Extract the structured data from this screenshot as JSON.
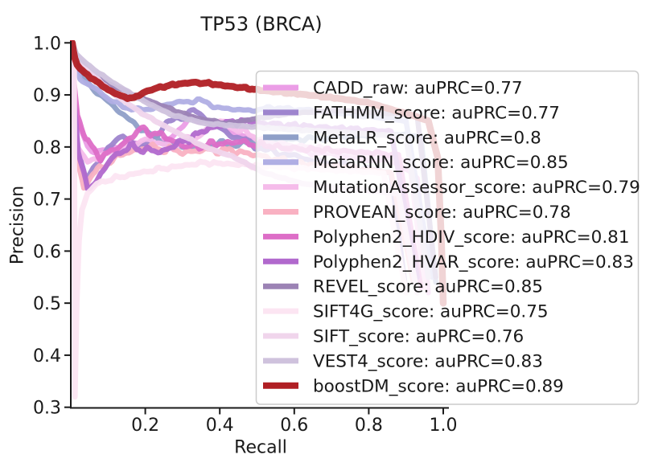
{
  "chart_data": {
    "type": "line",
    "title": "TP53 (BRCA)",
    "xlabel": "Recall",
    "ylabel": "Precision",
    "xlim": [
      0,
      1.015
    ],
    "ylim": [
      0.3,
      1.0
    ],
    "xticks": [
      "0.2",
      "0.4",
      "0.6",
      "0.8",
      "1.0"
    ],
    "xtick_values": [
      0.2,
      0.4,
      0.6,
      0.8,
      1.0
    ],
    "yticks": [
      "0.3",
      "0.4",
      "0.5",
      "0.6",
      "0.7",
      "0.8",
      "0.9",
      "1.0"
    ],
    "ytick_values": [
      0.3,
      0.4,
      0.5,
      0.6,
      0.7,
      0.8,
      0.9,
      1.0
    ],
    "grid": false,
    "legend": {
      "position": "center right",
      "frame_alpha": 0.8,
      "border_color": "#cccccc",
      "text_color": "#1a1a1a"
    },
    "series": [
      {
        "name": "CADD_raw",
        "auprc": 0.77,
        "label": "CADD_raw: auPRC=0.77",
        "color": "#eb9de6",
        "points": [
          [
            0.004,
            1.0
          ],
          [
            0.009,
            0.9
          ],
          [
            0.02,
            0.845
          ],
          [
            0.045,
            0.8
          ],
          [
            0.08,
            0.79
          ],
          [
            0.15,
            0.81
          ],
          [
            0.2,
            0.8
          ],
          [
            0.26,
            0.815
          ],
          [
            0.32,
            0.85
          ],
          [
            0.36,
            0.855
          ],
          [
            0.42,
            0.83
          ],
          [
            0.5,
            0.81
          ],
          [
            0.6,
            0.795
          ],
          [
            0.7,
            0.785
          ],
          [
            0.8,
            0.775
          ],
          [
            0.88,
            0.77
          ],
          [
            0.93,
            0.74
          ],
          [
            0.96,
            0.52
          ]
        ]
      },
      {
        "name": "FATHMM_score",
        "auprc": 0.77,
        "label": "FATHMM_score: auPRC=0.77",
        "color": "#9e85ce",
        "points": [
          [
            0.004,
            1.0
          ],
          [
            0.008,
            0.92
          ],
          [
            0.018,
            0.8
          ],
          [
            0.04,
            0.74
          ],
          [
            0.065,
            0.76
          ],
          [
            0.1,
            0.8
          ],
          [
            0.14,
            0.82
          ],
          [
            0.19,
            0.8
          ],
          [
            0.24,
            0.83
          ],
          [
            0.28,
            0.855
          ],
          [
            0.33,
            0.87
          ],
          [
            0.38,
            0.845
          ],
          [
            0.44,
            0.82
          ],
          [
            0.5,
            0.8
          ],
          [
            0.58,
            0.785
          ],
          [
            0.68,
            0.77
          ],
          [
            0.78,
            0.76
          ],
          [
            0.86,
            0.75
          ],
          [
            0.9,
            0.52
          ]
        ]
      },
      {
        "name": "MetaLR_score",
        "auprc": 0.8,
        "label": "MetaLR_score: auPRC=0.8",
        "color": "#8f9fc8",
        "points": [
          [
            0.004,
            1.0
          ],
          [
            0.01,
            0.96
          ],
          [
            0.03,
            0.935
          ],
          [
            0.07,
            0.905
          ],
          [
            0.12,
            0.875
          ],
          [
            0.17,
            0.845
          ],
          [
            0.23,
            0.815
          ],
          [
            0.3,
            0.8
          ],
          [
            0.42,
            0.805
          ],
          [
            0.52,
            0.81
          ],
          [
            0.62,
            0.815
          ],
          [
            0.75,
            0.82
          ],
          [
            0.87,
            0.825
          ],
          [
            0.94,
            0.82
          ],
          [
            0.98,
            0.54
          ]
        ]
      },
      {
        "name": "MetaRNN_score",
        "auprc": 0.85,
        "label": "MetaRNN_score: auPRC=0.85",
        "color": "#b0aee4",
        "points": [
          [
            0.004,
            1.0
          ],
          [
            0.009,
            0.965
          ],
          [
            0.025,
            0.93
          ],
          [
            0.06,
            0.915
          ],
          [
            0.1,
            0.893
          ],
          [
            0.14,
            0.878
          ],
          [
            0.18,
            0.87
          ],
          [
            0.22,
            0.875
          ],
          [
            0.28,
            0.885
          ],
          [
            0.34,
            0.89
          ],
          [
            0.4,
            0.875
          ],
          [
            0.47,
            0.87
          ],
          [
            0.55,
            0.875
          ],
          [
            0.65,
            0.87
          ],
          [
            0.78,
            0.86
          ],
          [
            0.9,
            0.85
          ],
          [
            0.97,
            0.55
          ]
        ]
      },
      {
        "name": "MutationAssessor_score",
        "auprc": 0.79,
        "label": "MutationAssessor_score: auPRC=0.79",
        "color": "#f5bcea",
        "points": [
          [
            0.004,
            1.0
          ],
          [
            0.008,
            0.87
          ],
          [
            0.02,
            0.8
          ],
          [
            0.045,
            0.77
          ],
          [
            0.09,
            0.785
          ],
          [
            0.15,
            0.8
          ],
          [
            0.2,
            0.815
          ],
          [
            0.27,
            0.8
          ],
          [
            0.34,
            0.82
          ],
          [
            0.4,
            0.85
          ],
          [
            0.46,
            0.83
          ],
          [
            0.52,
            0.81
          ],
          [
            0.62,
            0.8
          ],
          [
            0.74,
            0.79
          ],
          [
            0.84,
            0.78
          ],
          [
            0.91,
            0.77
          ],
          [
            0.95,
            0.53
          ]
        ]
      },
      {
        "name": "PROVEAN_score",
        "auprc": 0.78,
        "label": "PROVEAN_score: auPRC=0.78",
        "color": "#f9b1c2",
        "points": [
          [
            0.004,
            1.0
          ],
          [
            0.007,
            0.88
          ],
          [
            0.016,
            0.78
          ],
          [
            0.035,
            0.72
          ],
          [
            0.06,
            0.75
          ],
          [
            0.1,
            0.77
          ],
          [
            0.15,
            0.79
          ],
          [
            0.22,
            0.8
          ],
          [
            0.3,
            0.79
          ],
          [
            0.38,
            0.795
          ],
          [
            0.46,
            0.79
          ],
          [
            0.56,
            0.775
          ],
          [
            0.66,
            0.765
          ],
          [
            0.76,
            0.76
          ],
          [
            0.86,
            0.75
          ],
          [
            0.92,
            0.54
          ]
        ]
      },
      {
        "name": "Polyphen2_HDIV_score",
        "auprc": 0.81,
        "label": "Polyphen2_HDIV_score: auPRC=0.81",
        "color": "#dd6ec7",
        "points": [
          [
            0.004,
            1.0
          ],
          [
            0.008,
            0.93
          ],
          [
            0.018,
            0.86
          ],
          [
            0.04,
            0.815
          ],
          [
            0.08,
            0.78
          ],
          [
            0.13,
            0.8
          ],
          [
            0.19,
            0.835
          ],
          [
            0.25,
            0.82
          ],
          [
            0.31,
            0.8
          ],
          [
            0.38,
            0.805
          ],
          [
            0.45,
            0.81
          ],
          [
            0.55,
            0.8
          ],
          [
            0.65,
            0.795
          ],
          [
            0.78,
            0.79
          ],
          [
            0.88,
            0.785
          ],
          [
            0.94,
            0.53
          ]
        ]
      },
      {
        "name": "Polyphen2_HVAR_score",
        "auprc": 0.83,
        "label": "Polyphen2_HVAR_score: auPRC=0.83",
        "color": "#b169cd",
        "points": [
          [
            0.004,
            1.0
          ],
          [
            0.008,
            0.9
          ],
          [
            0.02,
            0.79
          ],
          [
            0.045,
            0.72
          ],
          [
            0.075,
            0.74
          ],
          [
            0.11,
            0.78
          ],
          [
            0.16,
            0.8
          ],
          [
            0.24,
            0.79
          ],
          [
            0.3,
            0.81
          ],
          [
            0.37,
            0.835
          ],
          [
            0.44,
            0.85
          ],
          [
            0.52,
            0.845
          ],
          [
            0.62,
            0.84
          ],
          [
            0.74,
            0.835
          ],
          [
            0.86,
            0.83
          ],
          [
            0.93,
            0.55
          ]
        ]
      },
      {
        "name": "REVEL_score",
        "auprc": 0.85,
        "label": "REVEL_score: auPRC=0.85",
        "color": "#9c83b5",
        "points": [
          [
            0.004,
            1.0
          ],
          [
            0.009,
            0.975
          ],
          [
            0.03,
            0.95
          ],
          [
            0.09,
            0.925
          ],
          [
            0.17,
            0.9
          ],
          [
            0.26,
            0.875
          ],
          [
            0.34,
            0.855
          ],
          [
            0.42,
            0.845
          ],
          [
            0.5,
            0.855
          ],
          [
            0.6,
            0.865
          ],
          [
            0.72,
            0.87
          ],
          [
            0.84,
            0.865
          ],
          [
            0.93,
            0.86
          ],
          [
            0.98,
            0.55
          ]
        ]
      },
      {
        "name": "SIFT4G_score",
        "auprc": 0.75,
        "label": "SIFT4G_score: auPRC=0.75",
        "color": "#fce5f2",
        "points": [
          [
            0.004,
            1.0
          ],
          [
            0.009,
            0.95
          ],
          [
            0.011,
            0.32
          ],
          [
            0.016,
            0.5
          ],
          [
            0.022,
            0.62
          ],
          [
            0.03,
            0.68
          ],
          [
            0.045,
            0.71
          ],
          [
            0.07,
            0.73
          ],
          [
            0.12,
            0.74
          ],
          [
            0.18,
            0.75
          ],
          [
            0.26,
            0.76
          ],
          [
            0.36,
            0.77
          ],
          [
            0.48,
            0.765
          ],
          [
            0.6,
            0.76
          ],
          [
            0.72,
            0.755
          ],
          [
            0.84,
            0.75
          ],
          [
            0.9,
            0.52
          ]
        ]
      },
      {
        "name": "SIFT_score",
        "auprc": 0.76,
        "label": "SIFT_score: auPRC=0.76",
        "color": "#f0d5ec",
        "points": [
          [
            0.004,
            1.0
          ],
          [
            0.015,
            0.975
          ],
          [
            0.05,
            0.945
          ],
          [
            0.11,
            0.905
          ],
          [
            0.19,
            0.865
          ],
          [
            0.27,
            0.833
          ],
          [
            0.36,
            0.8
          ],
          [
            0.44,
            0.78
          ],
          [
            0.52,
            0.75
          ],
          [
            0.62,
            0.73
          ],
          [
            0.72,
            0.72
          ],
          [
            0.82,
            0.715
          ],
          [
            0.88,
            0.71
          ],
          [
            0.93,
            0.52
          ]
        ]
      },
      {
        "name": "VEST4_score",
        "auprc": 0.83,
        "label": "VEST4_score: auPRC=0.83",
        "color": "#cfc2dd",
        "points": [
          [
            0.004,
            1.0
          ],
          [
            0.015,
            0.978
          ],
          [
            0.05,
            0.955
          ],
          [
            0.11,
            0.925
          ],
          [
            0.19,
            0.89
          ],
          [
            0.27,
            0.862
          ],
          [
            0.36,
            0.845
          ],
          [
            0.46,
            0.84
          ],
          [
            0.56,
            0.835
          ],
          [
            0.68,
            0.83
          ],
          [
            0.8,
            0.825
          ],
          [
            0.9,
            0.82
          ],
          [
            0.96,
            0.55
          ]
        ]
      },
      {
        "name": "boostDM_score",
        "auprc": 0.89,
        "label": "boostDM_score: auPRC=0.89",
        "color": "#b01f24",
        "points": [
          [
            0.004,
            1.0
          ],
          [
            0.007,
            0.985
          ],
          [
            0.011,
            0.97
          ],
          [
            0.017,
            0.958
          ],
          [
            0.026,
            0.95
          ],
          [
            0.04,
            0.94
          ],
          [
            0.058,
            0.932
          ],
          [
            0.08,
            0.92
          ],
          [
            0.1,
            0.91
          ],
          [
            0.12,
            0.903
          ],
          [
            0.14,
            0.896
          ],
          [
            0.17,
            0.894
          ],
          [
            0.2,
            0.906
          ],
          [
            0.24,
            0.915
          ],
          [
            0.29,
            0.921
          ],
          [
            0.33,
            0.924
          ],
          [
            0.37,
            0.922
          ],
          [
            0.42,
            0.917
          ],
          [
            0.47,
            0.913
          ],
          [
            0.52,
            0.908
          ],
          [
            0.58,
            0.904
          ],
          [
            0.65,
            0.899
          ],
          [
            0.72,
            0.893
          ],
          [
            0.8,
            0.885
          ],
          [
            0.87,
            0.87
          ],
          [
            0.92,
            0.86
          ],
          [
            0.96,
            0.85
          ],
          [
            0.985,
            0.78
          ],
          [
            0.995,
            0.62
          ],
          [
            1.0,
            0.5
          ]
        ]
      }
    ]
  }
}
